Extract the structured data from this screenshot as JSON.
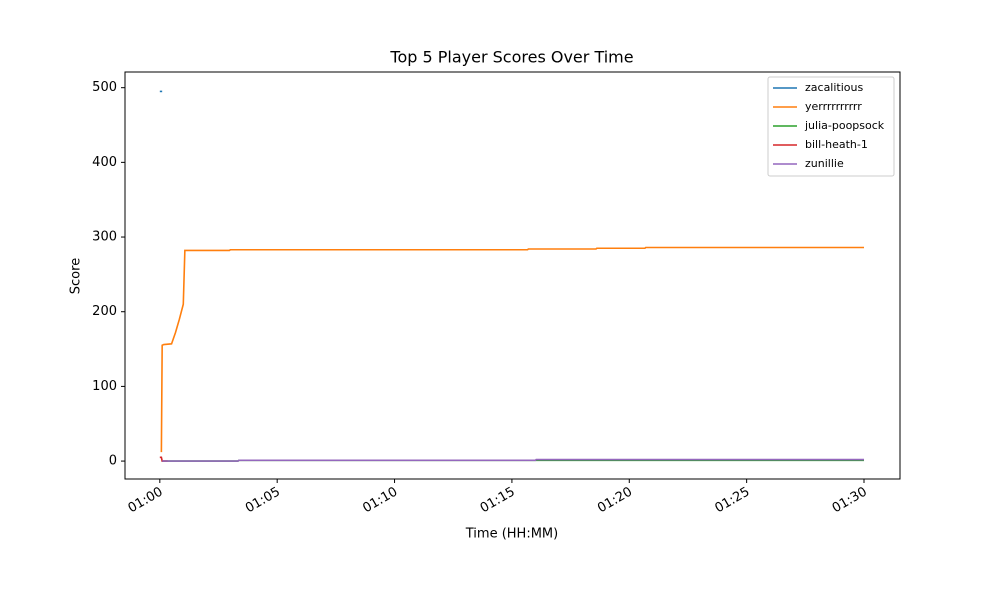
{
  "chart_data": {
    "type": "line",
    "title": "Top 5 Player Scores Over Time",
    "x_label": "Time (HH:MM)",
    "y_label": "Score",
    "xlim": [
      "00:58:31",
      "01:31:32"
    ],
    "xticks": [
      "01:00",
      "01:05",
      "01:10",
      "01:15",
      "01:20",
      "01:25",
      "01:30"
    ],
    "ylim": [
      -24,
      521
    ],
    "yticks": [
      0,
      100,
      200,
      300,
      400,
      500
    ],
    "grid": false,
    "legend": "upper right",
    "series": [
      {
        "name": "zacalitious",
        "color": "#1f77b4",
        "x": [
          "01:00:00",
          "01:00:06"
        ],
        "values": [
          495,
          495
        ]
      },
      {
        "name": "yerrrrrrrrrr",
        "color": "#ff7f0e",
        "x": [
          "01:00:04",
          "01:00:06",
          "01:00:10",
          "01:00:30",
          "01:00:40",
          "01:00:50",
          "01:01:00",
          "01:01:04",
          "01:02:58",
          "01:03:00",
          "01:15:40",
          "01:15:42",
          "01:18:35",
          "01:18:37",
          "01:20:40",
          "01:20:42",
          "01:30:00"
        ],
        "values": [
          12,
          155,
          156,
          157,
          172,
          190,
          210,
          282,
          282,
          283,
          283,
          284,
          284,
          285,
          285,
          286,
          286
        ]
      },
      {
        "name": "julia-poopsock",
        "color": "#2ca02c",
        "x": [
          "01:00:05",
          "01:03:20",
          "01:03:22",
          "01:30:00"
        ],
        "values": [
          0,
          0,
          1,
          1
        ]
      },
      {
        "name": "bill-heath-1",
        "color": "#d62728",
        "x": [
          "01:00:00",
          "01:00:04",
          "01:00:06",
          "01:00:20"
        ],
        "values": [
          5,
          5,
          0,
          0
        ]
      },
      {
        "name": "zunillie",
        "color": "#9467bd",
        "x": [
          "01:00:06",
          "01:03:20",
          "01:03:22",
          "01:16:00",
          "01:16:02",
          "01:30:00"
        ],
        "values": [
          0,
          0,
          1,
          1,
          2,
          2
        ]
      }
    ]
  }
}
